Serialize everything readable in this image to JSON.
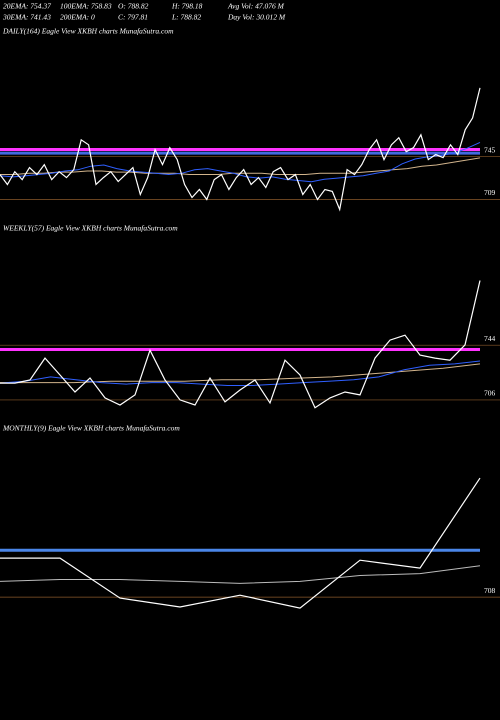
{
  "header": {
    "rows": [
      [
        "20EMA: 754.37",
        "100EMA: 758.83",
        "O: 788.82",
        "H: 798.18",
        "Avg Vol: 47.076  M"
      ],
      [
        "30EMA: 741.43",
        "200EMA: 0",
        "C: 797.81",
        "L: 788.82",
        "Day Vol: 30.012  M"
      ]
    ]
  },
  "chart_data": [
    {
      "type": "line",
      "title": "DAILY(164) Eagle  View  XKBH charts MunafaSutra.com",
      "ylim": [
        696,
        843
      ],
      "yticks": [
        709,
        745
      ],
      "grid": true,
      "grid_color": "#8b5a2b",
      "hlines": [
        {
          "value": 751,
          "color": "#ff33ff"
        },
        {
          "value": 748,
          "color": "#4169e1"
        }
      ],
      "series": [
        {
          "name": "Close",
          "color": "#ffffff",
          "values": [
            729.9,
            721.6,
            732.4,
            725.7,
            735.8,
            729.9,
            738.3,
            725.7,
            732.4,
            727.4,
            734.1,
            759.2,
            755.0,
            721.6,
            727.4,
            732.4,
            724.1,
            729.9,
            735.8,
            713.2,
            727.4,
            750.9,
            738.3,
            752.5,
            742.5,
            721.6,
            710.7,
            717.4,
            709.0,
            725.7,
            729.9,
            717.4,
            727.4,
            734.1,
            721.6,
            727.4,
            719.1,
            732.4,
            735.8,
            725.7,
            729.9,
            713.2,
            721.6,
            709.0,
            717.4,
            715.8,
            700.6,
            734.1,
            729.9,
            738.3,
            750.9,
            759.2,
            742.5,
            755.0,
            760.9,
            749.2,
            752.5,
            763.4,
            742.5,
            746.7,
            744.2,
            755.0,
            746.7,
            767.6,
            777.6,
            802.8
          ]
        },
        {
          "name": "EMA20",
          "color": "#2f5fff",
          "values": [
            729,
            728,
            729,
            730,
            731,
            733,
            734,
            737,
            738,
            735,
            733,
            732,
            731,
            730,
            731,
            734,
            735,
            733,
            731,
            728,
            727,
            728,
            726,
            725,
            724,
            726,
            727,
            728,
            729,
            731,
            733,
            739,
            743,
            745,
            746,
            748,
            752,
            757
          ]
        },
        {
          "name": "EMA30",
          "color": "#d2b48c",
          "values": [
            730,
            730,
            731,
            731,
            732,
            732,
            733,
            733,
            732,
            732,
            731,
            731,
            731,
            730,
            730,
            730,
            731,
            731,
            731,
            730,
            730,
            730,
            731,
            731,
            731,
            732,
            733,
            734,
            735,
            737,
            738,
            740,
            742,
            744
          ]
        }
      ]
    },
    {
      "type": "line",
      "title": "WEEKLY(57) Eagle  View  XKBH charts MunafaSutra.com",
      "ylim": [
        699,
        817
      ],
      "yticks": [
        744,
        706
      ],
      "grid": true,
      "grid_color": "#8b5a2b",
      "hlines": [
        {
          "value": 741,
          "color": "#ff33ff"
        }
      ],
      "series": [
        {
          "name": "Close",
          "color": "#ffffff",
          "values": [
            717.7,
            717.7,
            719.8,
            735.0,
            723.3,
            711.5,
            721.2,
            707.4,
            702.5,
            709.5,
            740.5,
            719.8,
            706.0,
            702.5,
            721.2,
            704.6,
            712.9,
            719.8,
            703.9,
            733.6,
            723.3,
            700.5,
            707.4,
            711.5,
            709.5,
            735.0,
            747.5,
            750.9,
            737.1,
            735.0,
            733.6,
            744.2,
            788.9
          ]
        },
        {
          "name": "EMA",
          "color": "#2f5fff",
          "values": [
            717.7,
            719,
            722,
            720,
            718,
            717,
            718,
            718,
            717,
            716,
            716,
            717,
            718,
            719,
            720,
            722,
            727,
            730,
            731,
            733
          ]
        },
        {
          "name": "EMA30",
          "color": "#d2b48c",
          "values": [
            718,
            718,
            718,
            719,
            719,
            719,
            720,
            720,
            721,
            722,
            724,
            726,
            728,
            731
          ]
        }
      ]
    },
    {
      "type": "line",
      "title": "MONTHLY(9) Eagle  View  XKBH charts MunafaSutra.com",
      "ylim": [
        648,
        788
      ],
      "yticks": [
        708
      ],
      "grid": true,
      "grid_color": "#8b5a2b",
      "hlines": [
        {
          "value": 731.9,
          "color": "#4a86e8"
        }
      ],
      "series": [
        {
          "name": "Close",
          "color": "#ffffff",
          "values": [
            727.9,
            727.9,
            707.5,
            703.0,
            709.0,
            702.4,
            726.8,
            722.8,
            768.6
          ]
        },
        {
          "name": "EMA",
          "color": "#bbbbbb",
          "values": [
            716,
            717,
            717,
            716,
            715,
            716,
            719,
            720,
            724
          ]
        }
      ]
    }
  ]
}
